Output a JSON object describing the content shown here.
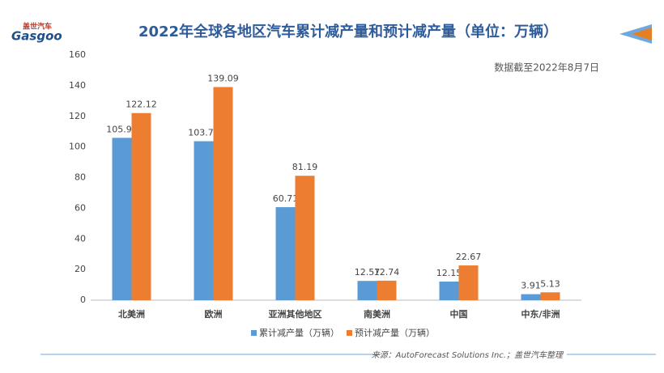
{
  "brand": {
    "name": "盖世汽车",
    "name_en": "Gasgoo"
  },
  "chart_data": {
    "type": "bar",
    "title": "2022年全球各地区汽车累计减产量和预计减产量（单位：万辆）",
    "annotation": "数据截至2022年8月7日",
    "source": "来源：AutoForecast Solutions Inc.；盖世汽车整理",
    "categories": [
      "北美洲",
      "欧洲",
      "亚洲其他地区",
      "南美洲",
      "中国",
      "中东/非洲"
    ],
    "series": [
      {
        "name": "累计减产量（万辆）",
        "color": "#5b9bd5",
        "values": [
          105.95,
          103.75,
          60.71,
          12.57,
          12.15,
          3.91
        ]
      },
      {
        "name": "预计减产量（万辆）",
        "color": "#ed7d31",
        "values": [
          122.12,
          139.09,
          81.19,
          12.74,
          22.67,
          5.13
        ]
      }
    ],
    "ylim": [
      0,
      160
    ],
    "yticks": [
      0,
      20,
      40,
      60,
      80,
      100,
      120,
      140,
      160
    ],
    "grid": false,
    "legend": "bottom"
  }
}
